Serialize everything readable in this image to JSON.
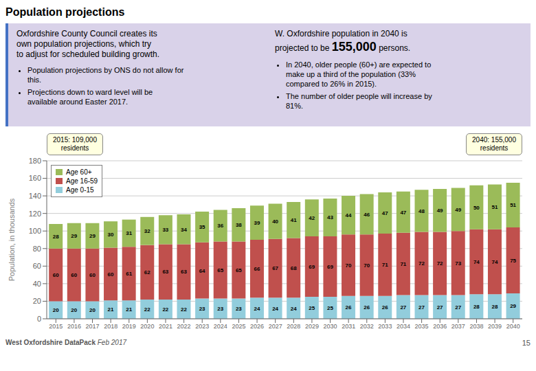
{
  "chart_data": {
    "type": "bar",
    "title": "Population projections",
    "stacked": true,
    "data_labels": true,
    "legend": "upper left",
    "grid": true,
    "categories": [
      "2015",
      "2016",
      "2017",
      "2018",
      "2019",
      "2020",
      "2021",
      "2022",
      "2023",
      "2024",
      "2025",
      "2026",
      "2027",
      "2028",
      "2029",
      "2030",
      "2031",
      "2032",
      "2033",
      "2034",
      "2035",
      "2036",
      "2037",
      "2038",
      "2039",
      "2040"
    ],
    "series": [
      {
        "name": "Age 0-15",
        "color": "#92cddc",
        "values": [
          20,
          20,
          20,
          21,
          21,
          22,
          22,
          22,
          23,
          23,
          23,
          24,
          24,
          24,
          25,
          25,
          26,
          26,
          26,
          27,
          27,
          27,
          27,
          28,
          28,
          29
        ]
      },
      {
        "name": "Age 16-59",
        "color": "#c0504d",
        "values": [
          60,
          60,
          60,
          60,
          61,
          62,
          63,
          63,
          64,
          65,
          65,
          66,
          67,
          68,
          69,
          69,
          70,
          70,
          71,
          71,
          72,
          72,
          73,
          74,
          74,
          75
        ]
      },
      {
        "name": "Age 60+",
        "color": "#9bbb59",
        "values": [
          28,
          29,
          29,
          30,
          31,
          32,
          33,
          34,
          35,
          36,
          38,
          39,
          40,
          41,
          42,
          43,
          44,
          46,
          47,
          47,
          48,
          49,
          49,
          50,
          51,
          51
        ]
      }
    ],
    "ylabel": "Population, in thousands",
    "ylim": [
      0,
      180
    ],
    "yticks": [
      0,
      20,
      40,
      60,
      80,
      100,
      120,
      140,
      160,
      180
    ],
    "annotations": [
      "2015: 109,000\nresidents",
      "2040: 155,000\nresidents"
    ],
    "header_left": [
      "Oxfordshire County Council creates its",
      "own population projections, which try",
      "to adjust for scheduled building growth."
    ],
    "header_right": [
      "W. Oxfordshire population in 2040 is",
      "projected to be",
      "155,000",
      "persons."
    ],
    "bullets_left": [
      "Population projections by ONS do not allow for\nthis.",
      "Projections down to ward level will be\navailable around Easter 2017."
    ],
    "bullets_right": [
      "In 2040, older people (60+) are expected to\nmake up a third of the population (33%\ncompared to 26% in 2015).",
      "The number of older people will increase by\n81%."
    ],
    "footer": [
      "West Oxfordshire DataPack",
      "Feb 2017",
      "15"
    ]
  }
}
